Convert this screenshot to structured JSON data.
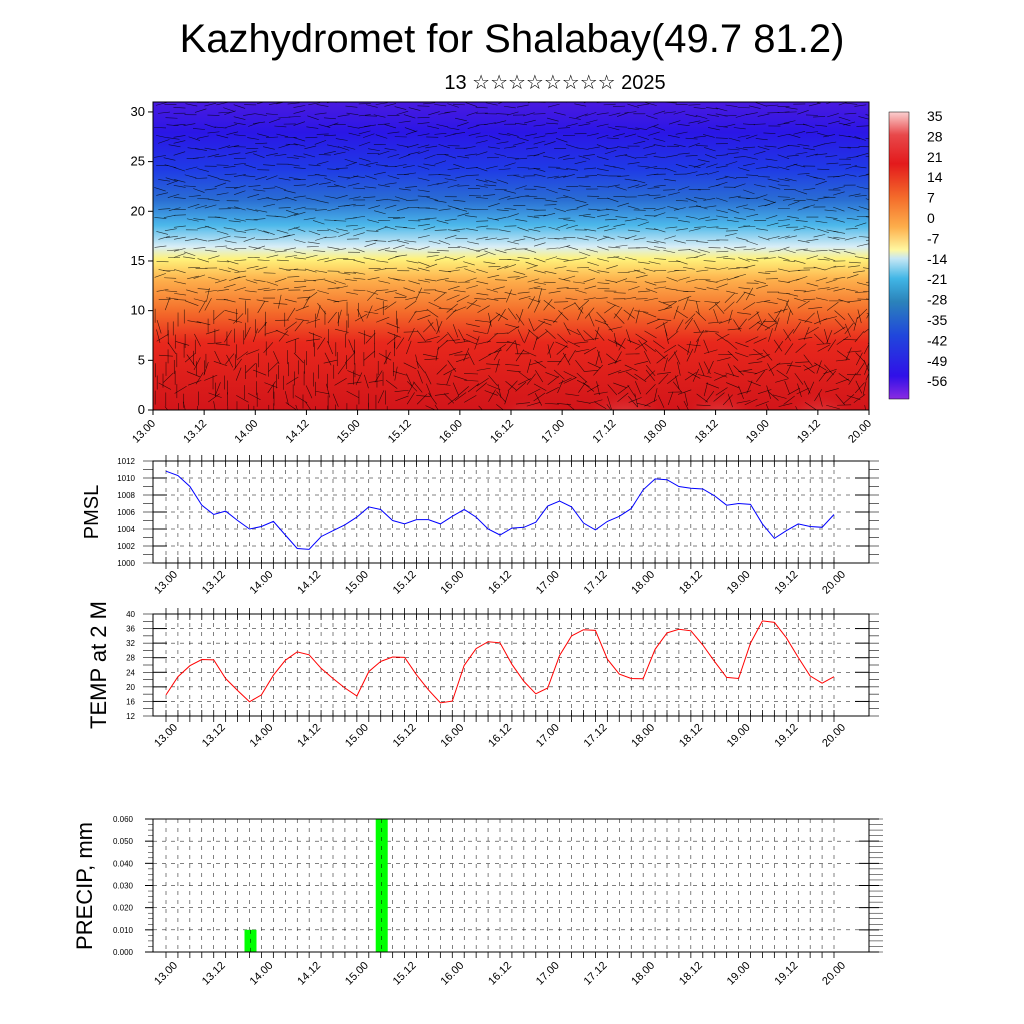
{
  "header": {
    "title": "Kazhydromet for Shalabay(49.7 81.2)",
    "subtitle": "13 ☆☆☆☆☆☆☆☆ 2025"
  },
  "chart_data": [
    {
      "type": "heatmap",
      "panel": "cross-section",
      "yticks": [
        0,
        5,
        10,
        15,
        20,
        25,
        30
      ],
      "ylim": [
        0,
        31
      ],
      "xticks": [
        "13.00",
        "13.12",
        "14.00",
        "14.12",
        "15.00",
        "15.12",
        "16.00",
        "16.12",
        "17.00",
        "17.12",
        "18.00",
        "18.12",
        "19.00",
        "19.12",
        "20.00"
      ],
      "colorbar": {
        "labels": [
          "35",
          "28",
          "21",
          "14",
          "7",
          "0",
          "-7",
          "-14",
          "-21",
          "-28",
          "-35",
          "-42",
          "-49",
          "-56"
        ],
        "colors": [
          "#ffffff",
          "#fbbbbb",
          "#e31a1c",
          "#d7191c",
          "#f03b20",
          "#f46d43",
          "#fdae61",
          "#fee08b",
          "#ffffbf",
          "#c6e7f5",
          "#41b6e6",
          "#2b83ba",
          "#2c4ec4",
          "#2020e0",
          "#3c10e8",
          "#8a2be2"
        ]
      }
    },
    {
      "type": "line",
      "panel": "pmsl",
      "ylabel": "PMSL",
      "ylim": [
        1000,
        1012
      ],
      "yticks": [
        1000,
        1002,
        1004,
        1006,
        1008,
        1010,
        1012
      ],
      "xticks": [
        "13.00",
        "13.12",
        "14.00",
        "14.12",
        "15.00",
        "15.12",
        "16.00",
        "16.12",
        "17.00",
        "17.12",
        "18.00",
        "18.12",
        "19.00",
        "19.12",
        "20.00"
      ],
      "color": "#0000ff",
      "values": [
        1010.8,
        1010.3,
        1009.0,
        1006.8,
        1005.7,
        1006.1,
        1005.0,
        1004.0,
        1004.3,
        1004.9,
        1003.3,
        1001.7,
        1001.6,
        1003.1,
        1003.8,
        1004.5,
        1005.4,
        1006.6,
        1006.3,
        1005.0,
        1004.6,
        1005.1,
        1005.1,
        1004.6,
        1005.5,
        1006.3,
        1005.4,
        1004.0,
        1003.3,
        1004.1,
        1004.2,
        1004.8,
        1006.7,
        1007.3,
        1006.6,
        1004.7,
        1003.9,
        1004.9,
        1005.5,
        1006.4,
        1008.6,
        1009.9,
        1009.8,
        1009.0,
        1008.8,
        1008.7,
        1007.9,
        1006.8,
        1007.0,
        1006.9,
        1004.6,
        1002.9,
        1003.8,
        1004.6,
        1004.3,
        1004.2,
        1005.7
      ]
    },
    {
      "type": "line",
      "panel": "temp2m",
      "ylabel": "TEMP at 2 M",
      "ylim": [
        12,
        40
      ],
      "yticks": [
        12,
        16,
        20,
        24,
        28,
        32,
        36,
        40
      ],
      "xticks": [
        "13.00",
        "13.12",
        "14.00",
        "14.12",
        "15.00",
        "15.12",
        "16.00",
        "16.12",
        "17.00",
        "17.12",
        "18.00",
        "18.12",
        "19.00",
        "19.12",
        "20.00"
      ],
      "color": "#ff0000",
      "values": [
        17.8,
        22.8,
        25.8,
        27.5,
        27.4,
        22.3,
        19.0,
        15.9,
        17.8,
        23.2,
        27.3,
        29.6,
        28.8,
        25.1,
        22.3,
        19.7,
        17.5,
        24.2,
        27.0,
        28.2,
        28.1,
        23.3,
        19.2,
        15.6,
        16.1,
        25.9,
        30.5,
        32.4,
        32.1,
        26.2,
        21.5,
        18.1,
        19.7,
        28.6,
        34.0,
        35.7,
        35.5,
        27.6,
        23.5,
        22.3,
        22.2,
        30.3,
        34.8,
        35.8,
        35.4,
        31.5,
        26.9,
        22.6,
        22.3,
        32.0,
        38.1,
        37.7,
        33.5,
        28.1,
        23.0,
        21.0,
        22.8
      ]
    },
    {
      "type": "bar",
      "panel": "precip",
      "ylabel": "PRECIP, mm",
      "ylim": [
        0,
        0.06
      ],
      "yticks": [
        "0.000",
        "0.010",
        "0.020",
        "0.030",
        "0.040",
        "0.050",
        "0.060"
      ],
      "xticks": [
        "13.00",
        "13.12",
        "14.00",
        "14.12",
        "15.00",
        "15.12",
        "16.00",
        "16.12",
        "17.00",
        "17.12",
        "18.00",
        "18.12",
        "19.00",
        "19.12",
        "20.00"
      ],
      "color": "#00ff00",
      "bars": [
        {
          "step": 7,
          "value": 0.01
        },
        {
          "step": 18,
          "value": 0.06
        }
      ]
    }
  ]
}
